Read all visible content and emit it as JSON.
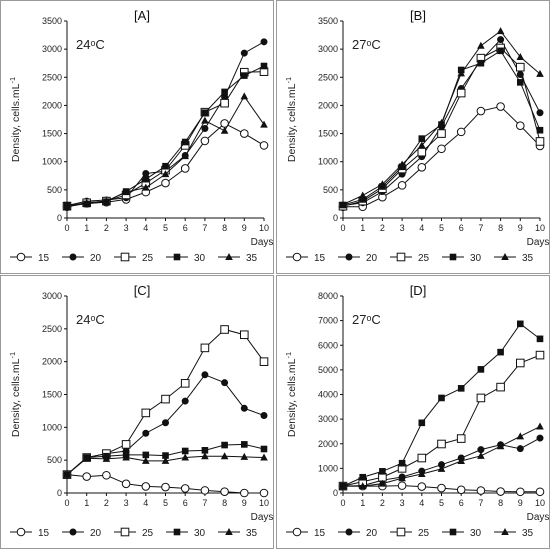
{
  "chart_data": [
    {
      "type": "line",
      "title": "[A]",
      "annotation": "24ᵒC",
      "xlabel": "Days",
      "ylabel": "Density, cells.mL",
      "ylabel_sup": "-1",
      "x": [
        0,
        1,
        2,
        3,
        4,
        5,
        6,
        7,
        8,
        9,
        10
      ],
      "xlim": [
        0,
        10
      ],
      "ylim": [
        0,
        3500
      ],
      "yticks": [
        0,
        500,
        1000,
        1500,
        2000,
        2500,
        3000,
        3500
      ],
      "legend_position": "bottom",
      "series": [
        {
          "name": "15",
          "marker": "open-circle",
          "values": [
            200,
            260,
            280,
            330,
            460,
            620,
            880,
            1370,
            1680,
            1500,
            1290
          ]
        },
        {
          "name": "20",
          "marker": "filled-circle",
          "values": [
            220,
            300,
            320,
            360,
            790,
            830,
            1110,
            1590,
            2150,
            2930,
            3130
          ]
        },
        {
          "name": "25",
          "marker": "open-square",
          "values": [
            210,
            270,
            300,
            410,
            620,
            850,
            1290,
            1880,
            2040,
            2590,
            2600
          ]
        },
        {
          "name": "30",
          "marker": "filled-square",
          "values": [
            230,
            250,
            290,
            470,
            690,
            920,
            1350,
            1870,
            2240,
            2530,
            2700
          ]
        },
        {
          "name": "35",
          "marker": "filled-triangle",
          "values": [
            200,
            270,
            300,
            460,
            540,
            780,
            1100,
            1730,
            1550,
            2160,
            1660
          ]
        }
      ]
    },
    {
      "type": "line",
      "title": "[B]",
      "annotation": "27ᵒC",
      "xlabel": "Days",
      "ylabel": "Density, cells.mL",
      "ylabel_sup": "-1",
      "x": [
        0,
        1,
        2,
        3,
        4,
        5,
        6,
        7,
        8,
        9,
        10
      ],
      "xlim": [
        0,
        10
      ],
      "ylim": [
        0,
        3500
      ],
      "yticks": [
        0,
        500,
        1000,
        1500,
        2000,
        2500,
        3000,
        3500
      ],
      "legend_position": "bottom",
      "series": [
        {
          "name": "15",
          "marker": "open-circle",
          "values": [
            200,
            200,
            370,
            580,
            900,
            1230,
            1530,
            1900,
            1980,
            1640,
            1280
          ]
        },
        {
          "name": "20",
          "marker": "filled-circle",
          "values": [
            220,
            270,
            470,
            780,
            1090,
            1630,
            2300,
            2800,
            3170,
            2550,
            1870
          ]
        },
        {
          "name": "25",
          "marker": "open-square",
          "values": [
            210,
            300,
            520,
            870,
            1170,
            1500,
            2220,
            2840,
            3020,
            2680,
            1360
          ]
        },
        {
          "name": "30",
          "marker": "filled-square",
          "values": [
            230,
            330,
            560,
            910,
            1410,
            1660,
            2630,
            2750,
            2970,
            2410,
            1560
          ]
        },
        {
          "name": "35",
          "marker": "filled-triangle",
          "values": [
            240,
            400,
            600,
            950,
            1290,
            1690,
            2570,
            3060,
            3320,
            2860,
            2560
          ]
        }
      ]
    },
    {
      "type": "line",
      "title": "[C]",
      "annotation": "24ᵒC",
      "xlabel": "Days",
      "ylabel": "Density, cells.mL",
      "ylabel_sup": "-1",
      "x": [
        0,
        1,
        2,
        3,
        4,
        5,
        6,
        7,
        8,
        9,
        10
      ],
      "xlim": [
        0,
        10
      ],
      "ylim": [
        0,
        3000
      ],
      "yticks": [
        0,
        500,
        1000,
        1500,
        2000,
        2500,
        3000
      ],
      "legend_position": "bottom",
      "series": [
        {
          "name": "15",
          "marker": "open-circle",
          "values": [
            280,
            250,
            270,
            140,
            100,
            90,
            70,
            40,
            20,
            0,
            0
          ]
        },
        {
          "name": "20",
          "marker": "filled-circle",
          "values": [
            280,
            540,
            600,
            640,
            910,
            1070,
            1400,
            1800,
            1680,
            1290,
            1180
          ]
        },
        {
          "name": "25",
          "marker": "open-square",
          "values": [
            280,
            540,
            600,
            740,
            1220,
            1430,
            1670,
            2210,
            2490,
            2410,
            2000
          ]
        },
        {
          "name": "30",
          "marker": "filled-square",
          "values": [
            280,
            540,
            560,
            580,
            580,
            570,
            640,
            650,
            730,
            740,
            670
          ]
        },
        {
          "name": "35",
          "marker": "filled-triangle",
          "values": [
            280,
            530,
            520,
            540,
            490,
            490,
            540,
            560,
            560,
            550,
            540
          ]
        }
      ]
    },
    {
      "type": "line",
      "title": "[D]",
      "annotation": "27ᵒC",
      "xlabel": "Days",
      "ylabel": "Density, cells.mL",
      "ylabel_sup": "-1",
      "x": [
        0,
        1,
        2,
        3,
        4,
        5,
        6,
        7,
        8,
        9,
        10
      ],
      "xlim": [
        0,
        10
      ],
      "ylim": [
        0,
        8000
      ],
      "yticks": [
        0,
        1000,
        2000,
        3000,
        4000,
        5000,
        6000,
        7000,
        8000
      ],
      "legend_position": "bottom",
      "series": [
        {
          "name": "15",
          "marker": "open-circle",
          "values": [
            280,
            280,
            280,
            300,
            260,
            200,
            130,
            100,
            60,
            50,
            50
          ]
        },
        {
          "name": "20",
          "marker": "filled-circle",
          "values": [
            280,
            300,
            520,
            650,
            890,
            1150,
            1420,
            1760,
            1960,
            1800,
            2230
          ]
        },
        {
          "name": "25",
          "marker": "open-square",
          "values": [
            280,
            460,
            640,
            1000,
            1420,
            1990,
            2210,
            3860,
            4300,
            5280,
            5600
          ]
        },
        {
          "name": "30",
          "marker": "filled-square",
          "values": [
            280,
            640,
            880,
            1210,
            2850,
            3860,
            4250,
            5020,
            5720,
            6870,
            6260
          ]
        },
        {
          "name": "35",
          "marker": "filled-triangle",
          "values": [
            280,
            280,
            380,
            600,
            770,
            980,
            1300,
            1510,
            1900,
            2300,
            2700
          ]
        }
      ]
    }
  ]
}
